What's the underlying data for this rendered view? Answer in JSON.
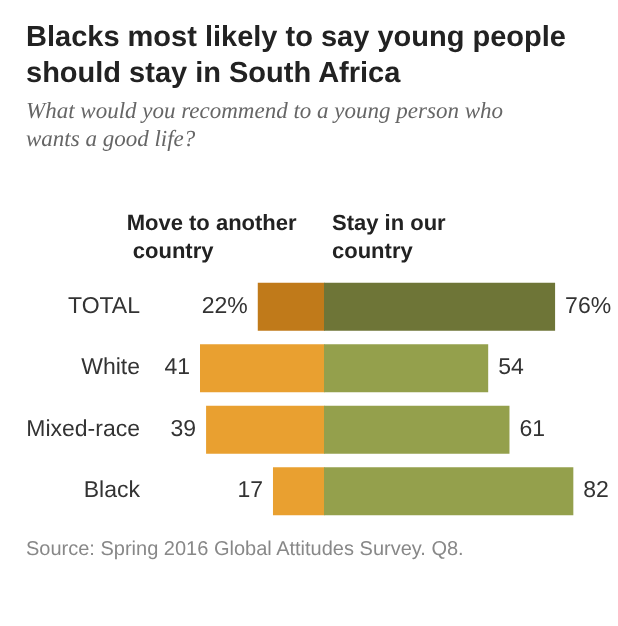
{
  "chart_data": [
    {
      "type": "bar",
      "orientation": "horizontal",
      "title": "Blacks most likely to say young people should stay in South Africa",
      "subtitle": "What would you recommend to a young person who wants a good life?",
      "categories": [
        "TOTAL",
        "White",
        "Mixed-race",
        "Black"
      ],
      "series": [
        {
          "name": "Move to another country",
          "colors": [
            "#c07a1a",
            "#e9a030",
            "#e9a030",
            "#e9a030"
          ],
          "values": [
            22,
            41,
            39,
            17
          ],
          "value_labels": [
            "22%",
            "41",
            "39",
            "17"
          ]
        }
      ],
      "xlim": [
        41,
        0
      ],
      "annotations": [
        "Source: Spring 2016 Global Attitudes Survey. Q8."
      ],
      "legend": false
    },
    {
      "type": "bar",
      "orientation": "horizontal",
      "categories": [
        null,
        null,
        null,
        null
      ],
      "series": [
        {
          "name": "Stay in our country",
          "colors": [
            "#6e7537",
            "#94a04c",
            "#94a04c",
            "#94a04c"
          ],
          "values": [
            76,
            54,
            61,
            82
          ],
          "value_labels": [
            "76%",
            "54",
            "61",
            "82"
          ]
        }
      ],
      "xlim": [
        0,
        82
      ],
      "tick_labels": false,
      "legend": false
    }
  ]
}
